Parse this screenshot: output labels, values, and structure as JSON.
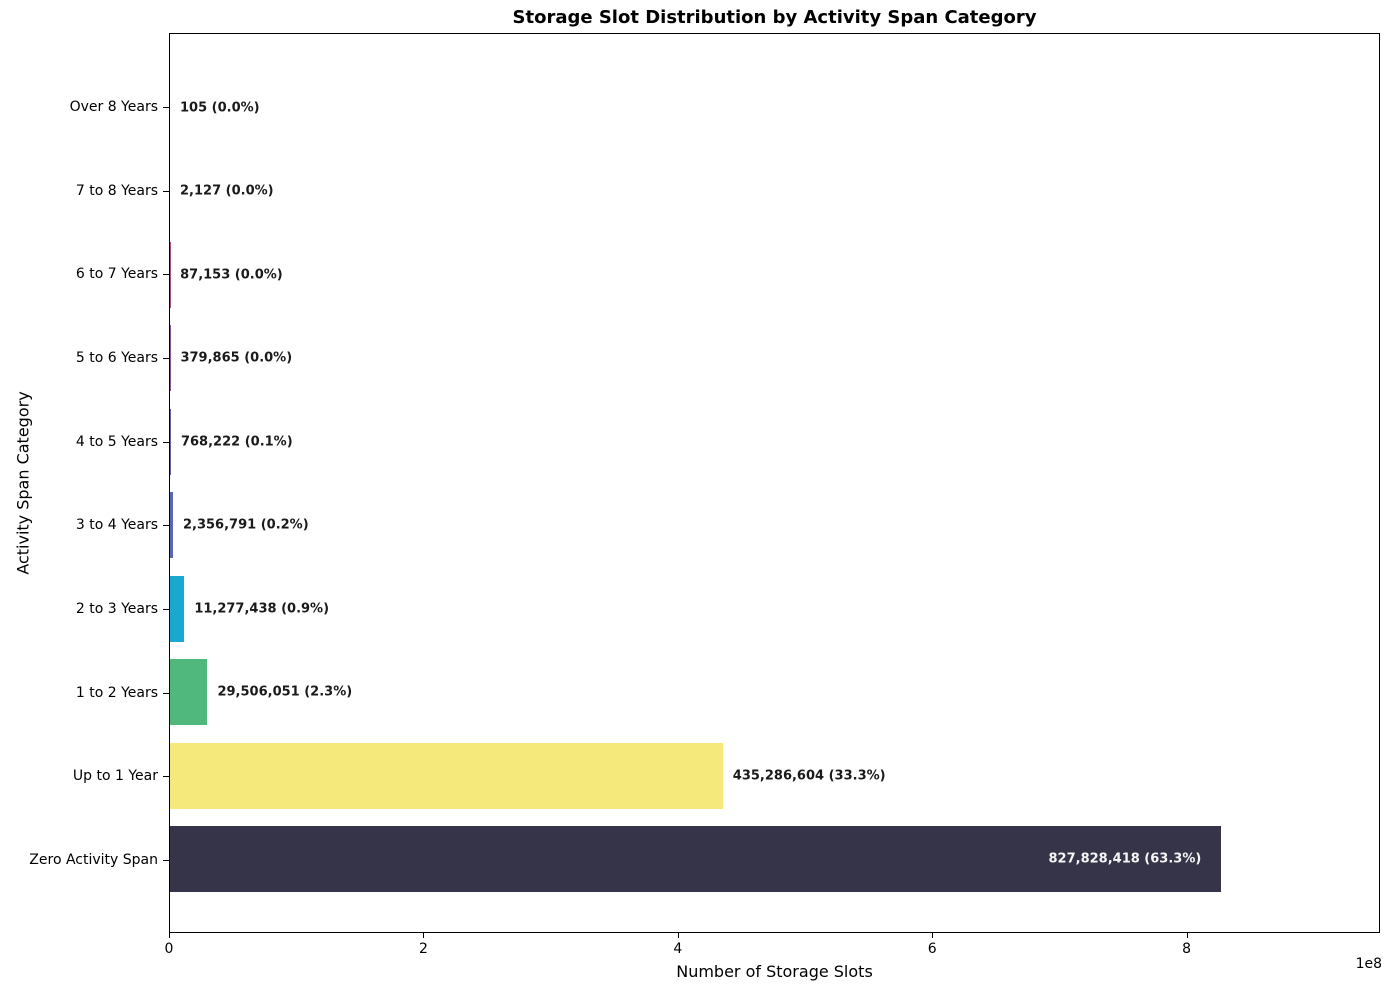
{
  "chart_data": {
    "type": "bar",
    "orientation": "horizontal",
    "title": "Storage Slot Distribution by Activity Span Category",
    "xlabel": "Number of Storage Slots",
    "ylabel": "Activity Span Category",
    "x_scale_offset_label": "1e8",
    "xlim": [
      0,
      952000000
    ],
    "xticks": [
      0,
      200000000,
      400000000,
      600000000,
      800000000
    ],
    "xtick_labels": [
      "0",
      "2",
      "4",
      "6",
      "8"
    ],
    "grid": false,
    "legend": null,
    "value_label_color": "#1a1a1a",
    "inside_label_color": "#f5f5f5",
    "axis_color": "#000000",
    "bars": [
      {
        "category": "Over 8 Years",
        "value": 105,
        "percent": 0.0,
        "label": "105 (0.0%)",
        "color": "#d44458",
        "label_inside": false
      },
      {
        "category": "7 to 8 Years",
        "value": 2127,
        "percent": 0.0,
        "label": "2,127 (0.0%)",
        "color": "#c14a6e",
        "label_inside": false
      },
      {
        "category": "6 to 7 Years",
        "value": 87153,
        "percent": 0.0,
        "label": "87,153 (0.0%)",
        "color": "#a85183",
        "label_inside": false
      },
      {
        "category": "5 to 6 Years",
        "value": 379865,
        "percent": 0.0,
        "label": "379,865 (0.0%)",
        "color": "#8a5897",
        "label_inside": false
      },
      {
        "category": "4 to 5 Years",
        "value": 768222,
        "percent": 0.1,
        "label": "768,222 (0.1%)",
        "color": "#6a5fa8",
        "label_inside": false
      },
      {
        "category": "3 to 4 Years",
        "value": 2356791,
        "percent": 0.2,
        "label": "2,356,791 (0.2%)",
        "color": "#5a69af",
        "label_inside": false
      },
      {
        "category": "2 to 3 Years",
        "value": 11277438,
        "percent": 0.9,
        "label": "11,277,438 (0.9%)",
        "color": "#18a8d0",
        "label_inside": false
      },
      {
        "category": "1 to 2 Years",
        "value": 29506051,
        "percent": 2.3,
        "label": "29,506,051 (2.3%)",
        "color": "#51b87d",
        "label_inside": false
      },
      {
        "category": "Up to 1 Year",
        "value": 435286604,
        "percent": 33.3,
        "label": "435,286,604 (33.3%)",
        "color": "#f6e97b",
        "label_inside": false
      },
      {
        "category": "Zero Activity Span",
        "value": 827828418,
        "percent": 63.3,
        "label": "827,828,418 (63.3%)",
        "color": "#363449",
        "label_inside": true
      }
    ]
  }
}
